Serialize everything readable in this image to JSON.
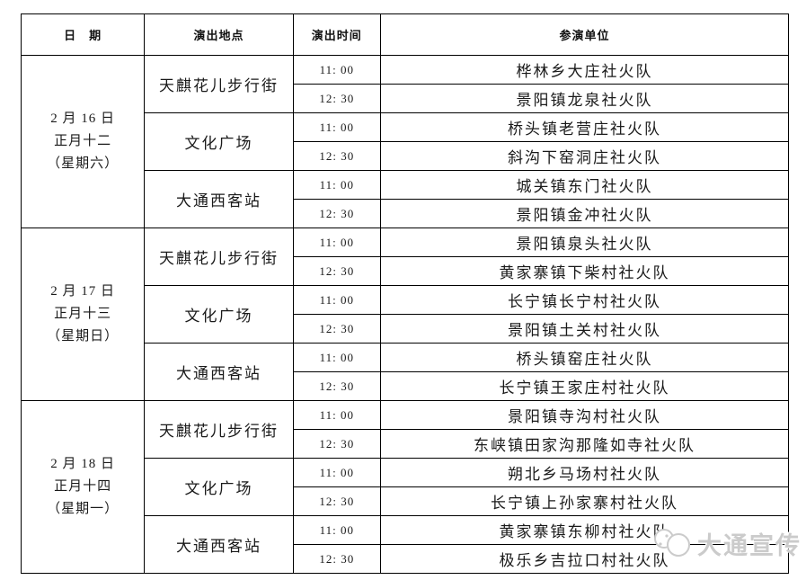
{
  "document": {
    "background_color": "#ffffff",
    "text_color": "#1a1a1a",
    "border_color": "#000000"
  },
  "watermark": {
    "text": "大通宣传",
    "color": "#cbcbcb",
    "icon": "speech-bubbles-logo"
  },
  "table": {
    "headers": [
      "日　期",
      "演出地点",
      "演出时间",
      "参演单位"
    ],
    "groups": [
      {
        "date_lines": [
          "2 月 16 日",
          "正月十二",
          "（星期六）"
        ],
        "locations": [
          {
            "name": "天麒花儿步行街",
            "shows": [
              {
                "time": "11: 00",
                "unit": "桦林乡大庄社火队"
              },
              {
                "time": "12: 30",
                "unit": "景阳镇龙泉社火队"
              }
            ]
          },
          {
            "name": "文化广场",
            "shows": [
              {
                "time": "11: 00",
                "unit": "桥头镇老营庄社火队"
              },
              {
                "time": "12: 30",
                "unit": "斜沟下窑洞庄社火队"
              }
            ]
          },
          {
            "name": "大通西客站",
            "shows": [
              {
                "time": "11: 00",
                "unit": "城关镇东门社火队"
              },
              {
                "time": "12: 30",
                "unit": "景阳镇金冲社火队"
              }
            ]
          }
        ]
      },
      {
        "date_lines": [
          "2 月 17 日",
          "正月十三",
          "（星期日）"
        ],
        "locations": [
          {
            "name": "天麒花儿步行街",
            "shows": [
              {
                "time": "11: 00",
                "unit": "景阳镇泉头社火队"
              },
              {
                "time": "12: 30",
                "unit": "黄家寨镇下柴村社火队"
              }
            ]
          },
          {
            "name": "文化广场",
            "shows": [
              {
                "time": "11: 00",
                "unit": "长宁镇长宁村社火队"
              },
              {
                "time": "12: 30",
                "unit": "景阳镇土关村社火队"
              }
            ]
          },
          {
            "name": "大通西客站",
            "shows": [
              {
                "time": "11: 00",
                "unit": "桥头镇窑庄社火队"
              },
              {
                "time": "12: 30",
                "unit": "长宁镇王家庄村社火队"
              }
            ]
          }
        ]
      },
      {
        "date_lines": [
          "2 月 18 日",
          "正月十四",
          "（星期一）"
        ],
        "locations": [
          {
            "name": "天麒花儿步行街",
            "shows": [
              {
                "time": "11: 00",
                "unit": "景阳镇寺沟村社火队"
              },
              {
                "time": "12: 30",
                "unit": "东峡镇田家沟那隆如寺社火队"
              }
            ]
          },
          {
            "name": "文化广场",
            "shows": [
              {
                "time": "11: 00",
                "unit": "朔北乡马场村社火队"
              },
              {
                "time": "12: 30",
                "unit": "长宁镇上孙家寨村社火队"
              }
            ]
          },
          {
            "name": "大通西客站",
            "shows": [
              {
                "time": "11: 00",
                "unit": "黄家寨镇东柳村社火队"
              },
              {
                "time": "12: 30",
                "unit": "极乐乡吉拉口村社火队"
              }
            ]
          }
        ]
      }
    ]
  }
}
